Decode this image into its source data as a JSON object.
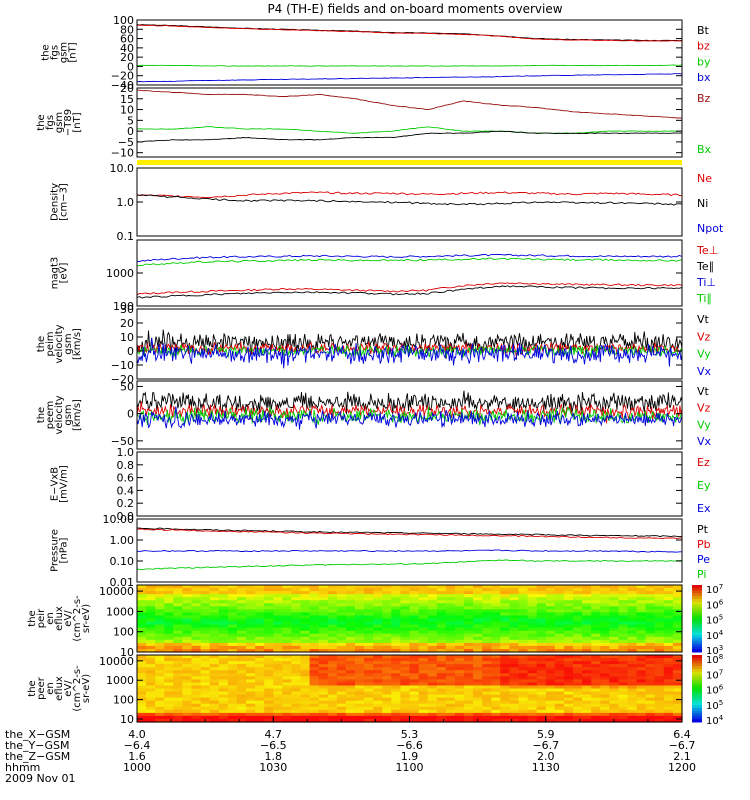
{
  "title": "P4 (TH-E) fields and on-board moments overview",
  "colors": {
    "black": "#000000",
    "red": "#dd0000",
    "green": "#00cc00",
    "blue": "#0000dd",
    "darkred": "#991111",
    "yellow": "#ffee00"
  },
  "chart_data": [
    {
      "type": "line",
      "ylabel": "the fgs gsm [nT]",
      "ylim": [
        -40,
        100
      ],
      "ticks": [
        "100",
        "80",
        "60",
        "40",
        "20",
        "0",
        "−20",
        "−40"
      ],
      "tick_values": [
        100,
        80,
        60,
        40,
        20,
        0,
        -20,
        -40
      ],
      "series": [
        {
          "name": "Bt",
          "color": "#000000",
          "values": [
            90,
            88,
            85,
            82,
            80,
            78,
            76,
            73,
            72,
            70,
            66,
            60,
            58,
            57,
            56,
            56
          ]
        },
        {
          "name": "bz",
          "color": "#dd0000",
          "values": [
            89,
            87,
            84,
            81,
            79,
            77,
            75,
            72,
            71,
            69,
            65,
            59,
            57,
            56,
            55,
            55
          ]
        },
        {
          "name": "by",
          "color": "#00cc00",
          "values": [
            2,
            2,
            1,
            1,
            1,
            1,
            1,
            1,
            1,
            1,
            1,
            2,
            2,
            2,
            2,
            3
          ]
        },
        {
          "name": "bx",
          "color": "#0000dd",
          "values": [
            -33,
            -32,
            -30,
            -29,
            -28,
            -27,
            -26,
            -25,
            -24,
            -23,
            -22,
            -20,
            -19,
            -18,
            -17,
            -16
          ]
        }
      ]
    },
    {
      "type": "line",
      "ylabel": "the fgs gsm −T89 [nT]",
      "ylim": [
        -12,
        20
      ],
      "ticks": [
        "20",
        "15",
        "10",
        "5",
        "0",
        "−5",
        "−10"
      ],
      "tick_values": [
        20,
        15,
        10,
        5,
        0,
        -5,
        -10
      ],
      "series": [
        {
          "name": "Bz",
          "color": "#991111",
          "values": [
            19,
            18,
            17,
            17,
            16,
            17,
            15,
            12,
            10,
            14,
            12,
            11,
            9,
            8,
            7,
            6
          ]
        },
        {
          "name": "Bx",
          "color": "#00cc00",
          "values": [
            1,
            1,
            2,
            1,
            1,
            0,
            -1,
            0,
            2,
            0,
            0,
            -1,
            -1,
            0,
            0,
            0
          ]
        },
        {
          "name": "",
          "color": "#000000",
          "values": [
            -5,
            -4,
            -4,
            -3,
            -4,
            -4,
            -3,
            -3,
            -1,
            -1,
            0,
            -1,
            -1,
            -1,
            -1,
            -1
          ]
        }
      ]
    },
    {
      "type": "line",
      "ylabel": "Density [cm−3]",
      "log": true,
      "ylim": [
        0.1,
        10
      ],
      "ticks": [
        "10.0",
        "1.0",
        "0.1"
      ],
      "tick_values": [
        10,
        1,
        0.1
      ],
      "series": [
        {
          "name": "Ne",
          "color": "#dd0000",
          "values": [
            1.6,
            1.5,
            1.4,
            1.6,
            1.8,
            1.9,
            1.8,
            1.8,
            1.7,
            1.8,
            1.9,
            1.8,
            1.7,
            1.8,
            1.7,
            1.6
          ]
        },
        {
          "name": "Ni",
          "color": "#000000",
          "values": [
            1.6,
            1.4,
            1.2,
            1.1,
            1.1,
            1.1,
            1.0,
            1.0,
            0.9,
            0.85,
            0.9,
            1.0,
            0.95,
            0.95,
            0.9,
            0.85
          ]
        },
        {
          "name": "Npot",
          "color": "#0000dd",
          "values": []
        }
      ]
    },
    {
      "type": "line",
      "ylabel": "magt3 [eV]",
      "log": true,
      "ylim": [
        100,
        10000
      ],
      "ticks": [
        "1000",
        "100"
      ],
      "tick_values": [
        1000,
        100
      ],
      "series": [
        {
          "name": "Te⊥",
          "color": "#dd0000",
          "values": [
            230,
            260,
            280,
            300,
            330,
            320,
            300,
            280,
            300,
            420,
            500,
            480,
            450,
            440,
            430,
            430
          ]
        },
        {
          "name": "Te∥",
          "color": "#000000",
          "values": [
            180,
            200,
            220,
            240,
            260,
            260,
            250,
            230,
            240,
            320,
            400,
            380,
            360,
            350,
            350,
            350
          ]
        },
        {
          "name": "Ti⊥",
          "color": "#0000dd",
          "values": [
            2300,
            2700,
            3000,
            3100,
            3200,
            3300,
            3200,
            3100,
            3200,
            3400,
            3500,
            3400,
            3300,
            3200,
            3200,
            3200
          ]
        },
        {
          "name": "Ti∥",
          "color": "#00cc00",
          "values": [
            1700,
            2000,
            2200,
            2300,
            2400,
            2500,
            2400,
            2400,
            2500,
            2600,
            2700,
            2600,
            2500,
            2500,
            2400,
            2400
          ]
        }
      ]
    },
    {
      "type": "line",
      "ylabel": "the peim velocity gsm [km/s]",
      "ylim": [
        -20,
        30
      ],
      "ticks": [
        "30",
        "20",
        "10",
        "0",
        "−10",
        "−20"
      ],
      "tick_values": [
        30,
        20,
        10,
        0,
        -10,
        -20
      ],
      "series": [
        {
          "name": "Vt",
          "color": "#000000",
          "base": 6,
          "amp": 7
        },
        {
          "name": "Vz",
          "color": "#dd0000",
          "base": 2,
          "amp": 4
        },
        {
          "name": "Vy",
          "color": "#00cc00",
          "base": 0,
          "amp": 4
        },
        {
          "name": "Vx",
          "color": "#0000dd",
          "base": -2,
          "amp": 7
        }
      ]
    },
    {
      "type": "line",
      "ylabel": "the peem velocity gsm [km/s]",
      "ylim": [
        -65,
        60
      ],
      "ticks": [
        "50",
        "0",
        "−50"
      ],
      "tick_values": [
        50,
        0,
        -50
      ],
      "series": [
        {
          "name": "Vt",
          "color": "#000000",
          "base": 20,
          "amp": 18
        },
        {
          "name": "Vz",
          "color": "#dd0000",
          "base": 5,
          "amp": 12
        },
        {
          "name": "Vy",
          "color": "#00cc00",
          "base": -5,
          "amp": 15
        },
        {
          "name": "Vx",
          "color": "#0000dd",
          "base": -10,
          "amp": 15
        }
      ]
    },
    {
      "type": "line",
      "ylabel": "E−VxB [mV/m]",
      "ylim": [
        0,
        1
      ],
      "ticks": [
        "1.0",
        "0.8",
        "0.6",
        "0.4",
        "0.2",
        "0.0"
      ],
      "tick_values": [
        1,
        0.8,
        0.6,
        0.4,
        0.2,
        0
      ],
      "series": [
        {
          "name": "Ez",
          "color": "#dd0000",
          "values": []
        },
        {
          "name": "Ey",
          "color": "#00cc00",
          "values": []
        },
        {
          "name": "Ex",
          "color": "#0000dd",
          "values": []
        }
      ]
    },
    {
      "type": "line",
      "ylabel": "Pressure [nPa]",
      "log": true,
      "ylim": [
        0.01,
        10
      ],
      "ticks": [
        "10.00",
        "1.00",
        "0.10",
        "0.01"
      ],
      "tick_values": [
        10,
        1,
        0.1,
        0.01
      ],
      "series": [
        {
          "name": "Pt",
          "color": "#000000",
          "values": [
            3.6,
            3.4,
            3.0,
            2.8,
            2.6,
            2.4,
            2.3,
            2.2,
            2.1,
            2.0,
            1.9,
            1.8,
            1.7,
            1.6,
            1.55,
            1.5
          ]
        },
        {
          "name": "Pb",
          "color": "#dd0000",
          "values": [
            3.2,
            3.0,
            2.7,
            2.5,
            2.3,
            2.1,
            2.0,
            1.9,
            1.8,
            1.7,
            1.6,
            1.5,
            1.4,
            1.3,
            1.25,
            1.2
          ]
        },
        {
          "name": "Pe",
          "color": "#0000dd",
          "values": [
            0.3,
            0.3,
            0.3,
            0.3,
            0.3,
            0.3,
            0.3,
            0.3,
            0.3,
            0.3,
            0.32,
            0.3,
            0.3,
            0.3,
            0.28,
            0.28
          ]
        },
        {
          "name": "Pi",
          "color": "#00cc00",
          "values": [
            0.04,
            0.045,
            0.05,
            0.055,
            0.06,
            0.065,
            0.07,
            0.07,
            0.075,
            0.09,
            0.11,
            0.1,
            0.1,
            0.1,
            0.1,
            0.1
          ]
        }
      ]
    },
    {
      "type": "heatmap",
      "ylabel": "the peir en eflux eV/(cm^2-s-sr-eV)",
      "log": true,
      "ylim": [
        10,
        20000
      ],
      "ticks": [
        "10000",
        "1000",
        "100",
        "10"
      ],
      "tick_values": [
        10000,
        1000,
        100,
        10
      ],
      "colorbar_labels": [
        "10",
        "10",
        "10",
        "10",
        "10"
      ],
      "colorbar_exps": [
        "7",
        "6",
        "5",
        "4",
        "3"
      ]
    },
    {
      "type": "heatmap",
      "ylabel": "the peer en eflux eV/(cm^2-s-sr-eV)",
      "log": true,
      "ylim": [
        7,
        20000
      ],
      "ticks": [
        "10000",
        "1000",
        "100",
        "10"
      ],
      "tick_values": [
        10000,
        1000,
        100,
        10
      ],
      "colorbar_labels": [
        "10",
        "10",
        "10",
        "10",
        "10"
      ],
      "colorbar_exps": [
        "8",
        "7",
        "6",
        "5",
        "4"
      ]
    }
  ],
  "xaxis": {
    "rows": [
      {
        "label": "the_X−GSM",
        "values": [
          "4.0",
          "4.7",
          "5.3",
          "5.9",
          "6.4"
        ]
      },
      {
        "label": "the_Y−GSM",
        "values": [
          "−6.4",
          "−6.5",
          "−6.6",
          "−6.7",
          "−6.7"
        ]
      },
      {
        "label": "the_Z−GSM",
        "values": [
          "1.6",
          "1.8",
          "1.9",
          "2.0",
          "2.1"
        ]
      },
      {
        "label": "hhmm",
        "values": [
          "1000",
          "1030",
          "1100",
          "1130",
          "1200"
        ]
      }
    ],
    "date": "2009 Nov 01"
  },
  "ylabels_display": [
    [
      "the",
      "fgs",
      "gsm",
      "[nT]"
    ],
    [
      "the",
      "fgs",
      "gsm",
      "−T89",
      "[nT]"
    ],
    [
      "Density",
      "[cm−3]"
    ],
    [
      "magt3",
      "[eV]"
    ],
    [
      "the",
      "peim",
      "velocity",
      "gsm",
      "[km/s]"
    ],
    [
      "the",
      "peem",
      "velocity",
      "gsm",
      "[km/s]"
    ],
    [
      "E−VxB",
      "[mV/m]"
    ],
    [
      "Pressure",
      "[nPa]"
    ],
    [
      "the",
      "peir",
      "en",
      "eflux",
      "eV/",
      "(cm^2-s-",
      "sr-eV)"
    ],
    [
      "the",
      "peer",
      "en",
      "eflux",
      "eV/",
      "(cm^2-s-",
      "sr-eV)"
    ]
  ]
}
